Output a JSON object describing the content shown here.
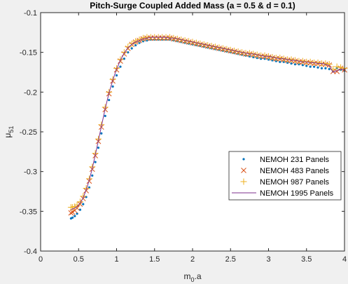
{
  "chart_data": {
    "type": "scatter",
    "title": "Pitch-Surge Coupled Added Mass (a = 0.5 & d = 0.1)",
    "xlabel_main": "m",
    "xlabel_sub": "0",
    "xlabel_rest": ".a",
    "ylabel_main": "μ",
    "ylabel_sub": "51",
    "xlim": [
      0,
      4
    ],
    "ylim": [
      -0.4,
      -0.1
    ],
    "xticks": [
      0,
      0.5,
      1,
      1.5,
      2,
      2.5,
      3,
      3.5,
      4
    ],
    "xtick_labels": [
      "0",
      "0.5",
      "1",
      "1.5",
      "2",
      "2.5",
      "3",
      "3.5",
      "4"
    ],
    "yticks": [
      -0.4,
      -0.35,
      -0.3,
      -0.25,
      -0.2,
      -0.15,
      -0.1
    ],
    "ytick_labels": [
      "-0.4",
      "-0.35",
      "-0.3",
      "-0.25",
      "-0.2",
      "-0.15",
      "-0.1"
    ],
    "grid": false,
    "legend_position": "right",
    "x": [
      0.4,
      0.42,
      0.45,
      0.48,
      0.52,
      0.56,
      0.6,
      0.64,
      0.68,
      0.72,
      0.76,
      0.8,
      0.85,
      0.9,
      0.95,
      1.0,
      1.05,
      1.1,
      1.15,
      1.2,
      1.25,
      1.3,
      1.35,
      1.4,
      1.45,
      1.5,
      1.55,
      1.6,
      1.65,
      1.7,
      1.75,
      1.8,
      1.85,
      1.9,
      1.95,
      2.0,
      2.05,
      2.1,
      2.15,
      2.2,
      2.25,
      2.3,
      2.35,
      2.4,
      2.45,
      2.5,
      2.55,
      2.6,
      2.65,
      2.7,
      2.75,
      2.8,
      2.85,
      2.9,
      2.95,
      3.0,
      3.05,
      3.1,
      3.15,
      3.2,
      3.25,
      3.3,
      3.35,
      3.4,
      3.45,
      3.5,
      3.55,
      3.6,
      3.65,
      3.7,
      3.75,
      3.8,
      3.85,
      3.9,
      3.95,
      4.0
    ],
    "series": [
      {
        "name": "NEMOH 231 Panels",
        "marker": "dot",
        "color": "#0072BD",
        "values": [
          -0.359,
          -0.358,
          -0.356,
          -0.353,
          -0.348,
          -0.341,
          -0.332,
          -0.32,
          -0.305,
          -0.288,
          -0.27,
          -0.252,
          -0.23,
          -0.21,
          -0.193,
          -0.179,
          -0.168,
          -0.158,
          -0.15,
          -0.145,
          -0.141,
          -0.138,
          -0.136,
          -0.135,
          -0.134,
          -0.134,
          -0.134,
          -0.134,
          -0.134,
          -0.134,
          -0.135,
          -0.136,
          -0.137,
          -0.138,
          -0.139,
          -0.14,
          -0.141,
          -0.142,
          -0.143,
          -0.144,
          -0.145,
          -0.146,
          -0.147,
          -0.148,
          -0.149,
          -0.15,
          -0.151,
          -0.152,
          -0.153,
          -0.154,
          -0.155,
          -0.156,
          -0.157,
          -0.158,
          -0.158,
          -0.159,
          -0.16,
          -0.161,
          -0.162,
          -0.162,
          -0.163,
          -0.164,
          -0.165,
          -0.165,
          -0.166,
          -0.167,
          -0.168,
          -0.168,
          -0.169,
          -0.17,
          -0.17,
          -0.171,
          -0.174,
          -0.17,
          -0.172,
          -0.173
        ]
      },
      {
        "name": "NEMOH 483 Panels",
        "marker": "x",
        "color": "#D95319",
        "values": [
          -0.352,
          -0.351,
          -0.349,
          -0.346,
          -0.341,
          -0.334,
          -0.324,
          -0.312,
          -0.297,
          -0.28,
          -0.262,
          -0.244,
          -0.222,
          -0.202,
          -0.186,
          -0.172,
          -0.161,
          -0.152,
          -0.145,
          -0.14,
          -0.137,
          -0.135,
          -0.133,
          -0.132,
          -0.132,
          -0.132,
          -0.132,
          -0.132,
          -0.132,
          -0.132,
          -0.133,
          -0.134,
          -0.135,
          -0.136,
          -0.137,
          -0.138,
          -0.139,
          -0.14,
          -0.141,
          -0.142,
          -0.143,
          -0.144,
          -0.145,
          -0.146,
          -0.147,
          -0.148,
          -0.149,
          -0.15,
          -0.151,
          -0.152,
          -0.152,
          -0.153,
          -0.154,
          -0.155,
          -0.155,
          -0.156,
          -0.157,
          -0.158,
          -0.158,
          -0.159,
          -0.16,
          -0.16,
          -0.161,
          -0.162,
          -0.162,
          -0.163,
          -0.163,
          -0.164,
          -0.164,
          -0.165,
          -0.165,
          -0.166,
          -0.174,
          -0.174,
          -0.17,
          -0.172
        ]
      },
      {
        "name": "NEMOH 987 Panels",
        "marker": "plus",
        "color": "#EDB120",
        "values": [
          -0.345,
          -0.345,
          -0.344,
          -0.342,
          -0.338,
          -0.331,
          -0.321,
          -0.309,
          -0.294,
          -0.277,
          -0.259,
          -0.241,
          -0.219,
          -0.2,
          -0.184,
          -0.17,
          -0.159,
          -0.15,
          -0.143,
          -0.139,
          -0.136,
          -0.134,
          -0.132,
          -0.131,
          -0.131,
          -0.131,
          -0.131,
          -0.131,
          -0.131,
          -0.131,
          -0.132,
          -0.133,
          -0.134,
          -0.135,
          -0.136,
          -0.137,
          -0.138,
          -0.139,
          -0.14,
          -0.141,
          -0.142,
          -0.143,
          -0.144,
          -0.145,
          -0.146,
          -0.147,
          -0.148,
          -0.149,
          -0.15,
          -0.151,
          -0.151,
          -0.152,
          -0.153,
          -0.154,
          -0.154,
          -0.155,
          -0.156,
          -0.157,
          -0.157,
          -0.158,
          -0.159,
          -0.159,
          -0.16,
          -0.161,
          -0.161,
          -0.162,
          -0.162,
          -0.163,
          -0.163,
          -0.164,
          -0.164,
          -0.165,
          -0.171,
          -0.168,
          -0.169,
          -0.17
        ]
      },
      {
        "name": "NEMOH 1995 Panels",
        "marker": "line",
        "color": "#7E2F8E",
        "values": [
          -0.348,
          -0.347,
          -0.346,
          -0.344,
          -0.34,
          -0.333,
          -0.323,
          -0.311,
          -0.296,
          -0.279,
          -0.261,
          -0.243,
          -0.221,
          -0.201,
          -0.185,
          -0.171,
          -0.16,
          -0.151,
          -0.144,
          -0.14,
          -0.137,
          -0.135,
          -0.133,
          -0.132,
          -0.131,
          -0.131,
          -0.131,
          -0.131,
          -0.131,
          -0.132,
          -0.132,
          -0.133,
          -0.134,
          -0.135,
          -0.136,
          -0.137,
          -0.138,
          -0.139,
          -0.14,
          -0.141,
          -0.142,
          -0.143,
          -0.144,
          -0.145,
          -0.146,
          -0.147,
          -0.148,
          -0.149,
          -0.15,
          -0.151,
          -0.152,
          -0.152,
          -0.153,
          -0.154,
          -0.155,
          -0.155,
          -0.156,
          -0.157,
          -0.158,
          -0.158,
          -0.159,
          -0.16,
          -0.16,
          -0.161,
          -0.162,
          -0.162,
          -0.163,
          -0.163,
          -0.164,
          -0.164,
          -0.165,
          -0.167,
          -0.175,
          -0.173,
          -0.171,
          -0.172
        ]
      }
    ]
  }
}
